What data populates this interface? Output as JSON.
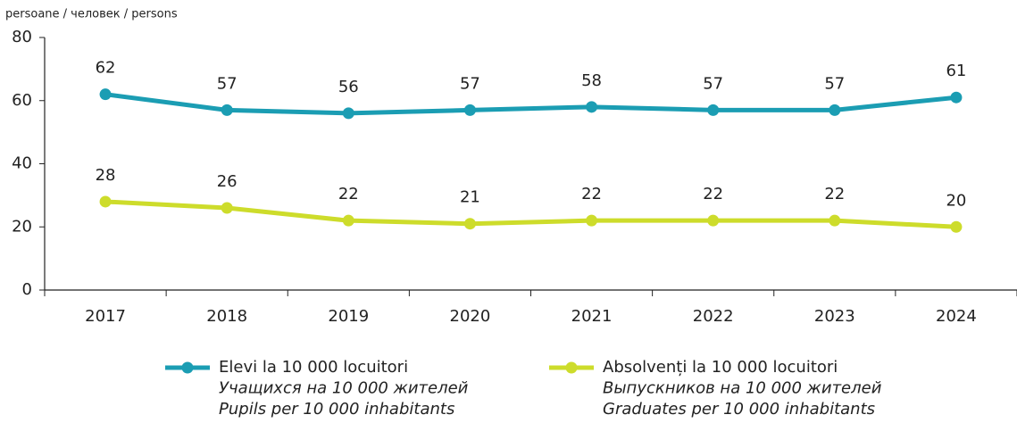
{
  "chart_data": {
    "type": "line",
    "y_label": "persoane / человек / persons",
    "categories": [
      "2017",
      "2018",
      "2019",
      "2020",
      "2021",
      "2022",
      "2023",
      "2024"
    ],
    "series": [
      {
        "name": [
          "Elevi la 10 000 locuitori",
          "Учащихся на 10 000 жителей",
          "Pupils per 10 000 inhabitants"
        ],
        "color": "#1b9db3",
        "values": [
          62,
          57,
          56,
          57,
          58,
          57,
          57,
          61
        ]
      },
      {
        "name": [
          "Absolvenți la 10 000 locuitori",
          "Выпускников на 10 000 жителей",
          "Graduates per 10 000 inhabitants"
        ],
        "color": "#cddc2b",
        "values": [
          28,
          26,
          22,
          21,
          22,
          22,
          22,
          20
        ]
      }
    ],
    "ylim": [
      0,
      80
    ],
    "yticks": [
      0,
      20,
      40,
      60,
      80
    ],
    "grid": false,
    "legend": "bottom"
  }
}
